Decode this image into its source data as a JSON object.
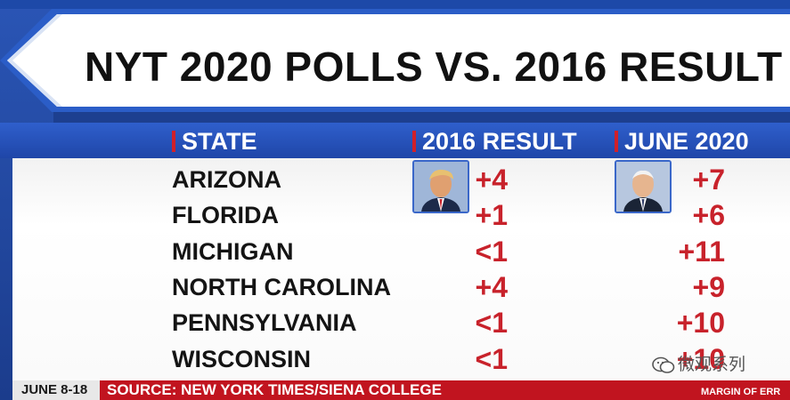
{
  "title": "NYT 2020 POLLS VS. 2016 RESULT",
  "headers": {
    "state": "STATE",
    "result_2016": "2016 RESULT",
    "june_2020": "JUNE 2020"
  },
  "rows": [
    {
      "state": "ARIZONA",
      "result_2016": "+4",
      "june_2020": "+7"
    },
    {
      "state": "FLORIDA",
      "result_2016": "+1",
      "june_2020": "+6"
    },
    {
      "state": "MICHIGAN",
      "result_2016": "<1",
      "june_2020": "+11"
    },
    {
      "state": "NORTH CAROLINA",
      "result_2016": "+4",
      "june_2020": "+9"
    },
    {
      "state": "PENNSYLVANIA",
      "result_2016": "<1",
      "june_2020": "+10"
    },
    {
      "state": "WISCONSIN",
      "result_2016": "<1",
      "june_2020": "+10"
    }
  ],
  "icons": {
    "portrait_2016": "trump-portrait-icon",
    "portrait_2020": "biden-portrait-icon",
    "watermark": "wechat-icon"
  },
  "footer": {
    "date": "JUNE 8-18",
    "source": "SOURCE: NEW YORK TIMES/SIENA COLLEGE",
    "margin": "MARGIN OF ERR"
  },
  "watermark": "微观系列",
  "colors": {
    "accent_red": "#c8222b",
    "header_blue": "#2a55c0",
    "background_blue": "#1d3f8f"
  }
}
